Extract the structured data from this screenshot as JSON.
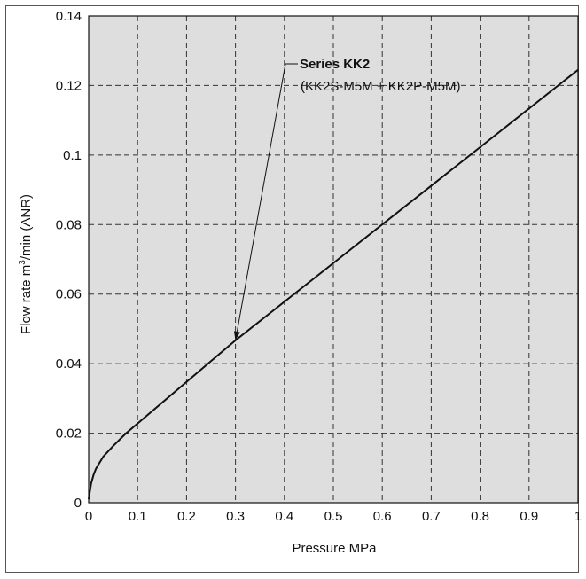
{
  "chart_data": {
    "type": "line",
    "title": "",
    "xlabel": "Pressure MPa",
    "ylabel_main": "Flow rate m",
    "ylabel_sup": "3",
    "ylabel_tail": "/min (ANR)",
    "xlim": [
      0,
      1
    ],
    "ylim": [
      0,
      0.14
    ],
    "xticks": [
      "0",
      "0.1",
      "0.2",
      "0.3",
      "0.4",
      "0.5",
      "0.6",
      "0.7",
      "0.8",
      "0.9",
      "1"
    ],
    "yticks": [
      "0",
      "0.02",
      "0.04",
      "0.06",
      "0.08",
      "0.1",
      "0.12",
      "0.14"
    ],
    "grid": true,
    "plot_background": "#dedede",
    "series": [
      {
        "name": "Series KK2",
        "x": [
          0,
          0.005,
          0.01,
          0.015,
          0.02,
          0.03,
          0.05,
          0.075,
          0.3,
          1.0
        ],
        "y": [
          0.001,
          0.0055,
          0.008,
          0.0098,
          0.011,
          0.0133,
          0.0163,
          0.0198,
          0.0467,
          0.1245
        ]
      }
    ],
    "annotation": {
      "series_label": "Series KK2",
      "detail": "(KK2S-M5M + KK2P-M5M)",
      "arrow_target": [
        0.3,
        0.0467
      ]
    }
  }
}
